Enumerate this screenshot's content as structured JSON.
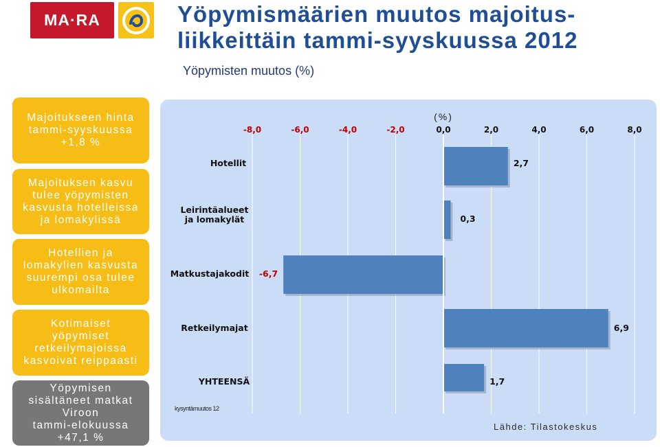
{
  "logos": {
    "mara_text": "MA·RA",
    "finland_logo_icon": "finland-swirl-icon"
  },
  "title": "Yöpymismäärien muutos majoitus-liikkeittäin tammi-syyskuussa 2012",
  "subtitle": "Yöpymisten muutos (%)",
  "sidebar": [
    {
      "text": "Majoitukseen hinta\ntammi-syyskuussa\n+1,8 %",
      "color": "#f6bd17"
    },
    {
      "text": "Majoituksen kasvu\ntulee yöpymisten\nkasvusta hotelleissa\nja lomakylissä",
      "color": "#f6bd17"
    },
    {
      "text": "Hotellien ja\nlomakylien kasvusta\nsuurempi osa tulee\nulkomailta",
      "color": "#f6bd17"
    },
    {
      "text": "Kotimaiset\nyöpymiset\nretkeilymajoissa\nkasvoivat reippaasti",
      "color": "#f6bd17"
    },
    {
      "text": "Yöpymisen\nsisältäneet matkat\nViroon\ntammi-elokuussa\n+47,1 %",
      "color": "#777777"
    }
  ],
  "chart_data": {
    "type": "bar",
    "orientation": "horizontal",
    "unit_label": "(%)",
    "categories": [
      "Hotellit",
      "Leirintäalueet\nja lomakylät",
      "Matkustajakodit",
      "Retkeilymajat",
      "YHTEENSÄ"
    ],
    "values": [
      2.7,
      0.3,
      -6.7,
      6.9,
      1.7
    ],
    "value_labels": [
      "2,7",
      "0,3",
      "-6,7",
      "6,9",
      "1,7"
    ],
    "xlim": [
      -8,
      8
    ],
    "xticks": [
      "-8,0",
      "-6,0",
      "-4,0",
      "-2,0",
      "0,0",
      "2,0",
      "4,0",
      "6,0",
      "8,0"
    ],
    "xtick_values": [
      -8,
      -6,
      -4,
      -2,
      0,
      2,
      4,
      6,
      8
    ],
    "grid": true,
    "bar_color": "#4f81bd"
  },
  "footnote": "kysyntämuutos 12",
  "source": "Lähde: Tilastokeskus"
}
